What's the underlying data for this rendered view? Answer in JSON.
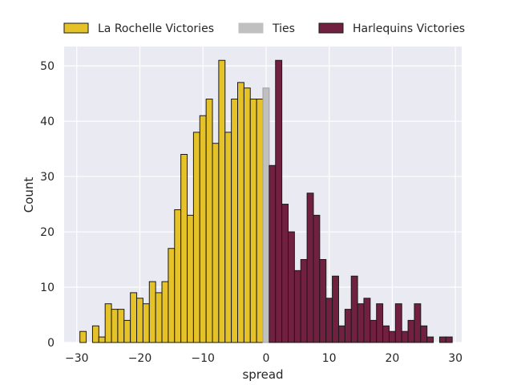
{
  "chart_data": {
    "type": "bar",
    "title": "",
    "xlabel": "spread",
    "ylabel": "Count",
    "xlim": [
      -32,
      31
    ],
    "ylim": [
      0,
      53.5
    ],
    "xticks": [
      -30,
      -20,
      -10,
      0,
      10,
      20,
      30
    ],
    "yticks": [
      0,
      10,
      20,
      30,
      40,
      50
    ],
    "grid": true,
    "legend_position": "top",
    "bin_width": 1,
    "series": [
      {
        "name": "La Rochelle Victories",
        "color": "#e6c229",
        "bins": [
          {
            "x": -29,
            "count": 2
          },
          {
            "x": -27,
            "count": 3
          },
          {
            "x": -26,
            "count": 1
          },
          {
            "x": -25,
            "count": 7
          },
          {
            "x": -24,
            "count": 6
          },
          {
            "x": -23,
            "count": 6
          },
          {
            "x": -22,
            "count": 4
          },
          {
            "x": -21,
            "count": 9
          },
          {
            "x": -20,
            "count": 8
          },
          {
            "x": -19,
            "count": 7
          },
          {
            "x": -18,
            "count": 11
          },
          {
            "x": -17,
            "count": 9
          },
          {
            "x": -16,
            "count": 11
          },
          {
            "x": -15,
            "count": 17
          },
          {
            "x": -14,
            "count": 24
          },
          {
            "x": -13,
            "count": 34
          },
          {
            "x": -12,
            "count": 23
          },
          {
            "x": -11,
            "count": 38
          },
          {
            "x": -10,
            "count": 41
          },
          {
            "x": -9,
            "count": 44
          },
          {
            "x": -8,
            "count": 36
          },
          {
            "x": -7,
            "count": 51
          },
          {
            "x": -6,
            "count": 38
          },
          {
            "x": -5,
            "count": 44
          },
          {
            "x": -4,
            "count": 47
          },
          {
            "x": -3,
            "count": 46
          },
          {
            "x": -2,
            "count": 44
          },
          {
            "x": -1,
            "count": 44
          }
        ]
      },
      {
        "name": "Ties",
        "color": "#c0c0c0",
        "bins": [
          {
            "x": 0,
            "count": 46
          }
        ]
      },
      {
        "name": "Harlequins Victories",
        "color": "#722040",
        "bins": [
          {
            "x": 1,
            "count": 32
          },
          {
            "x": 2,
            "count": 51
          },
          {
            "x": 3,
            "count": 25
          },
          {
            "x": 4,
            "count": 20
          },
          {
            "x": 5,
            "count": 13
          },
          {
            "x": 6,
            "count": 15
          },
          {
            "x": 7,
            "count": 27
          },
          {
            "x": 8,
            "count": 23
          },
          {
            "x": 9,
            "count": 15
          },
          {
            "x": 10,
            "count": 8
          },
          {
            "x": 11,
            "count": 12
          },
          {
            "x": 12,
            "count": 3
          },
          {
            "x": 13,
            "count": 6
          },
          {
            "x": 14,
            "count": 12
          },
          {
            "x": 15,
            "count": 7
          },
          {
            "x": 16,
            "count": 8
          },
          {
            "x": 17,
            "count": 4
          },
          {
            "x": 18,
            "count": 7
          },
          {
            "x": 19,
            "count": 3
          },
          {
            "x": 20,
            "count": 2
          },
          {
            "x": 21,
            "count": 7
          },
          {
            "x": 22,
            "count": 2
          },
          {
            "x": 23,
            "count": 4
          },
          {
            "x": 24,
            "count": 7
          },
          {
            "x": 25,
            "count": 3
          },
          {
            "x": 26,
            "count": 1
          },
          {
            "x": 28,
            "count": 1
          },
          {
            "x": 29,
            "count": 1
          }
        ]
      }
    ]
  }
}
